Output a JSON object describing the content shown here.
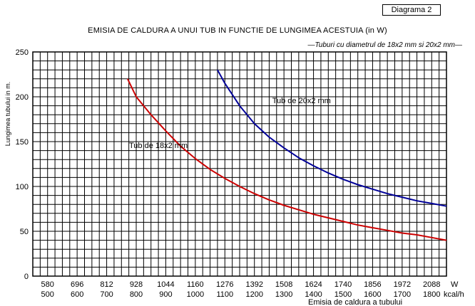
{
  "diagram_label": "Diagrama 2",
  "chart_data": {
    "type": "line",
    "title": "EMISIA DE CALDURA A UNUI TUB IN FUNCTIE DE LUNGIMEA ACESTUIA (in W)",
    "subtitle": "—Tuburi cu diametrul de 18x2 mm si 20x2 mm—",
    "ylabel": "Lungimea tubului in m.",
    "xlabel": "Emisia de caldura a tubului",
    "x_unit_w": "W",
    "x_unit_kcal": "kcal/h",
    "ylim": [
      0,
      250
    ],
    "xlim_w": [
      522,
      2146
    ],
    "y_ticks": [
      0,
      50,
      100,
      150,
      200,
      250
    ],
    "x_ticks_w": [
      580,
      696,
      812,
      928,
      1044,
      1160,
      1276,
      1392,
      1508,
      1624,
      1740,
      1856,
      1972,
      2088
    ],
    "x_ticks_kcal": [
      500,
      600,
      700,
      800,
      900,
      1000,
      1100,
      1200,
      1300,
      1400,
      1500,
      1600,
      1700,
      1800
    ],
    "grid": true,
    "series": [
      {
        "name": "Tub de 18x2 mm",
        "color": "#cc0000",
        "x": [
          894,
          928,
          986,
          1044,
          1102,
          1160,
          1218,
          1276,
          1334,
          1392,
          1450,
          1508,
          1566,
          1624,
          1682,
          1740,
          1798,
          1856,
          1914,
          1972,
          2030,
          2088,
          2146
        ],
        "y": [
          220,
          200,
          180,
          162,
          145,
          131,
          119,
          109,
          100,
          92,
          85,
          79,
          74,
          69,
          65,
          61,
          57,
          54,
          51,
          48,
          46,
          43,
          40
        ]
      },
      {
        "name": "Tub de 20x2 mm",
        "color": "#000099",
        "x": [
          1247,
          1276,
          1334,
          1392,
          1450,
          1508,
          1566,
          1624,
          1682,
          1740,
          1798,
          1856,
          1914,
          1972,
          2030,
          2088,
          2146
        ],
        "y": [
          230,
          215,
          190,
          170,
          155,
          143,
          132,
          123,
          115,
          108,
          102,
          97,
          92,
          88,
          84,
          81,
          78
        ]
      }
    ],
    "annotations": [
      {
        "text": "Tub de 18x2 mm",
        "x": 900,
        "y": 143
      },
      {
        "text": "Tub de 20x2 mm",
        "x": 1462,
        "y": 193
      }
    ]
  }
}
